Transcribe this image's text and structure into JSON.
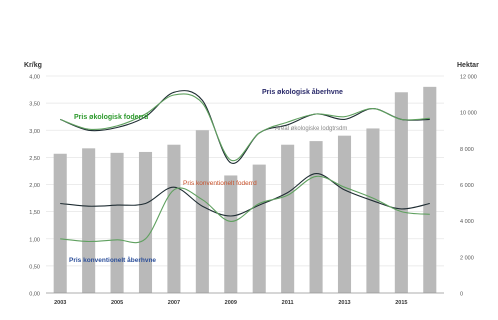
{
  "chart_data": {
    "type": "bar",
    "title": "",
    "y_left_unit": "Kr/kg",
    "y_right_unit": "Hektar",
    "ylim_left": [
      0,
      4
    ],
    "ylim_right": [
      0,
      12000
    ],
    "y_left_ticks": [
      "0,00",
      "0,50",
      "1,00",
      "1,50",
      "2,00",
      "2,50",
      "3,00",
      "3,50",
      "4,00"
    ],
    "y_right_ticks": [
      "0",
      "2 000",
      "4 000",
      "6 000",
      "8 000",
      "10 000",
      "12 000"
    ],
    "x_tick_labels": [
      "2003",
      "2005",
      "2007",
      "2009",
      "2011",
      "2013",
      "2015"
    ],
    "categories": [
      2003,
      2004,
      2005,
      2006,
      2007,
      2008,
      2009,
      2010,
      2011,
      2012,
      2013,
      2014,
      2015,
      2016
    ],
    "grid": true,
    "bar_series": {
      "name": "Areal økologiske lodgtrsdm",
      "axis": "right",
      "values": [
        7700,
        8000,
        7750,
        7800,
        8200,
        9000,
        6500,
        7100,
        8200,
        8400,
        8700,
        9100,
        11100,
        11400
      ]
    },
    "line_series": [
      {
        "name": "Pris økologisk foderrd",
        "axis": "left",
        "values": [
          3.2,
          3.0,
          3.05,
          3.25,
          3.7,
          3.55,
          2.4,
          2.95,
          3.1,
          3.3,
          3.2,
          3.4,
          3.2,
          3.2
        ]
      },
      {
        "name": "Pris økologisk åberhvne",
        "axis": "left",
        "values": [
          3.2,
          3.02,
          3.08,
          3.3,
          3.65,
          3.5,
          2.45,
          2.95,
          3.15,
          3.3,
          3.25,
          3.4,
          3.2,
          3.22
        ]
      },
      {
        "name": "Pris konventionelt foderrd",
        "axis": "left",
        "values": [
          1.65,
          1.6,
          1.62,
          1.65,
          1.95,
          1.6,
          1.42,
          1.62,
          1.85,
          2.2,
          1.9,
          1.7,
          1.55,
          1.65
        ]
      },
      {
        "name": "Pris konventionelt åberhvne",
        "axis": "left",
        "values": [
          1.0,
          0.95,
          0.98,
          1.0,
          1.9,
          1.72,
          1.32,
          1.65,
          1.8,
          2.15,
          1.95,
          1.75,
          1.5,
          1.45
        ]
      }
    ],
    "annotations": [
      {
        "text": "Pris økologisk foderrd",
        "color": "#2e9a2e"
      },
      {
        "text": "Pris økologisk åberhvne",
        "color": "#2a2a6a"
      },
      {
        "text": "Pris konventionelt foderrd",
        "color": "#c8512a"
      },
      {
        "text": "Pris konventionelt åberhvne",
        "color": "#2c4f9a"
      },
      {
        "text": "Areal økologiske lodgtrsdm",
        "color": "#8a8a8a"
      }
    ],
    "colors": {
      "bar": "#b9b9b9",
      "line_dark": "#1f2d33",
      "line_green": "#5fa05f",
      "grid": "#e6e6e6"
    }
  }
}
